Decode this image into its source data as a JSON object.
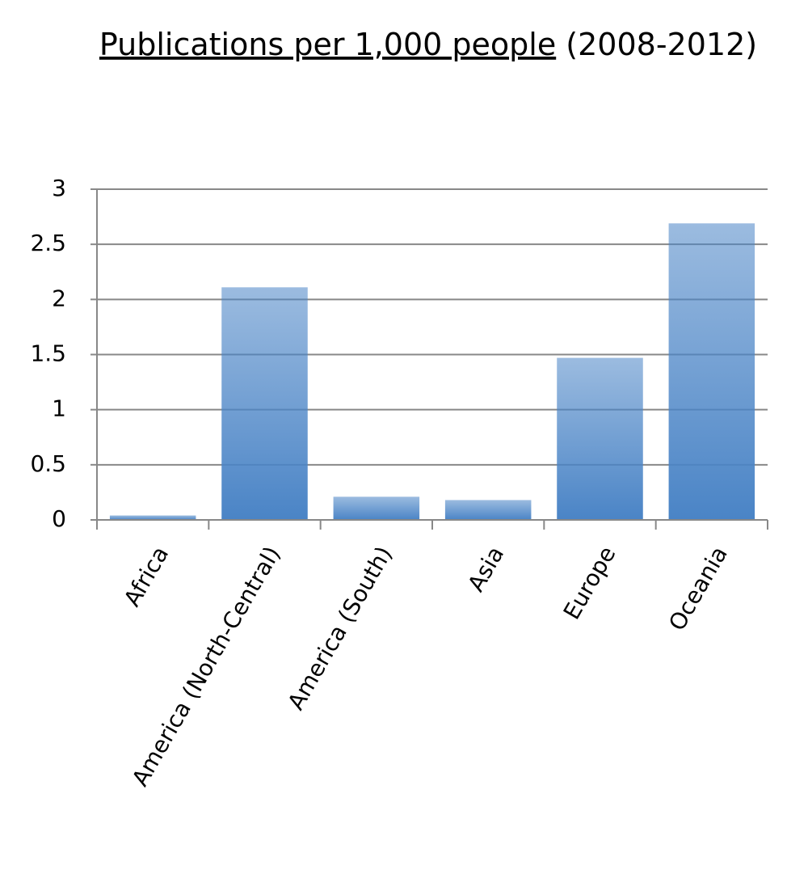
{
  "chart_data": {
    "type": "bar",
    "title": "Publications per 1,000 people",
    "subtitle": "(2008-2012)",
    "categories": [
      "Africa",
      "America (North-Central)",
      "America (South)",
      "Asia",
      "Europe",
      "Oceania"
    ],
    "values": [
      0.04,
      2.11,
      0.21,
      0.18,
      1.47,
      2.69
    ],
    "color": "#4a84c6",
    "ylim": [
      0,
      3
    ],
    "yticks": [
      0,
      0.5,
      1,
      1.5,
      2,
      2.5,
      3
    ],
    "grid": true
  }
}
